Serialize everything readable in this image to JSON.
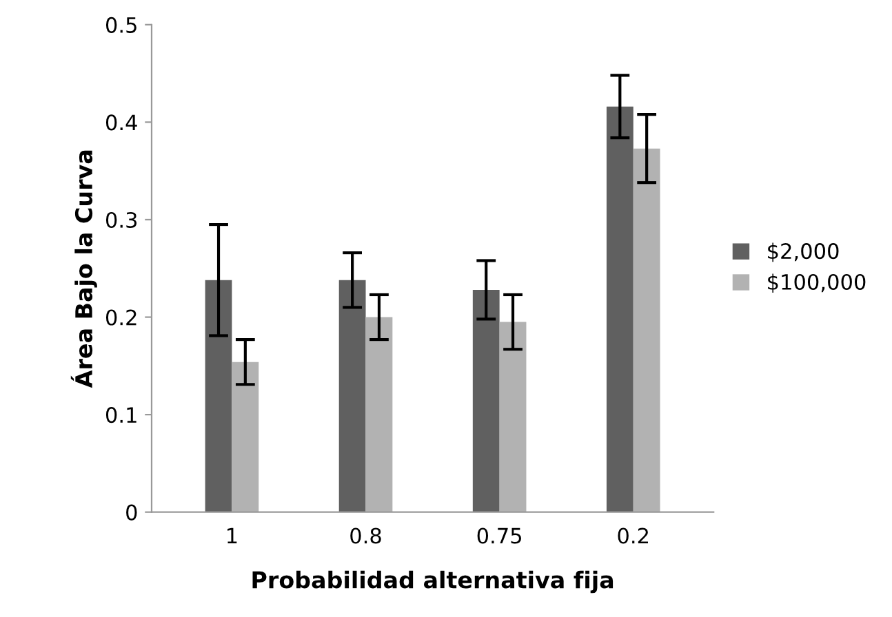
{
  "chart_data": {
    "type": "bar",
    "xlabel": "Probabilidad alternativa fija",
    "ylabel": "Área Bajo la Curva",
    "categories": [
      "1",
      "0.8",
      "0.75",
      "0.2"
    ],
    "series": [
      {
        "name": "$2,000",
        "color": "#606060",
        "values": [
          0.238,
          0.238,
          0.228,
          0.416
        ],
        "errors": [
          0.057,
          0.028,
          0.03,
          0.032
        ]
      },
      {
        "name": "$100,000",
        "color": "#b2b2b2",
        "values": [
          0.154,
          0.2,
          0.195,
          0.373
        ],
        "errors": [
          0.023,
          0.023,
          0.028,
          0.035
        ]
      }
    ],
    "ylim": [
      0,
      0.5
    ],
    "yticks": [
      {
        "value": 0,
        "label": "0"
      },
      0.1,
      0.2,
      0.3,
      0.4,
      0.5
    ],
    "grid": false,
    "legend": "right"
  }
}
